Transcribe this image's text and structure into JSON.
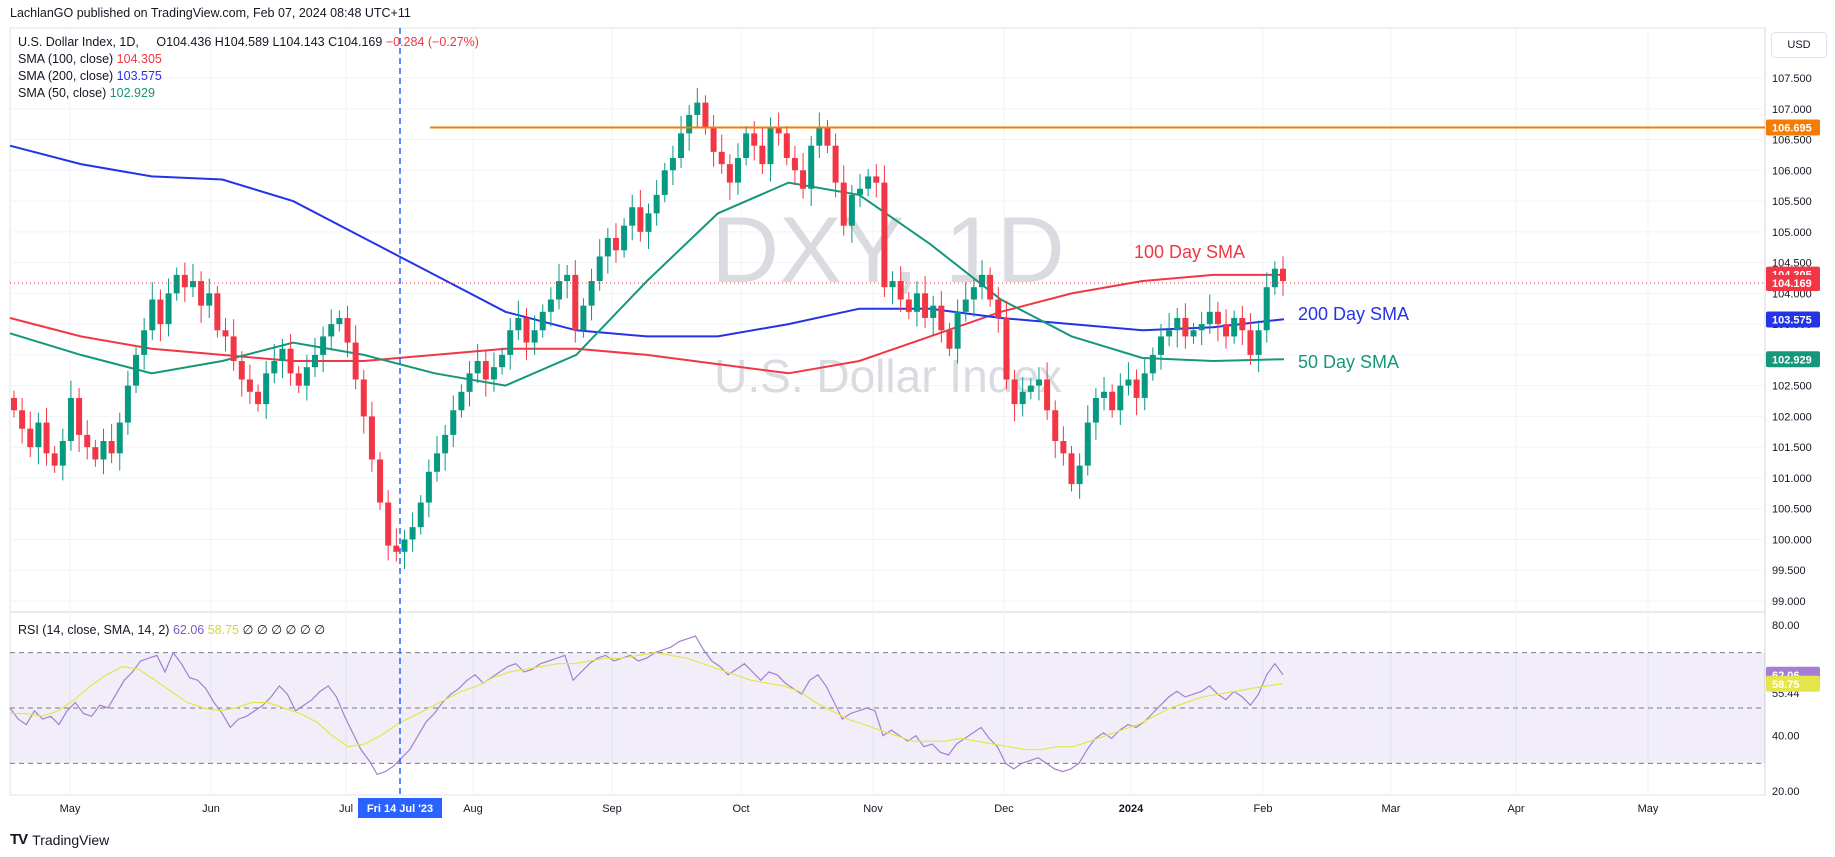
{
  "header": {
    "published": "LachlanGO published on TradingView.com, Feb 07, 2024 08:48 UTC+11"
  },
  "legend": {
    "symbol": "U.S. Dollar Index, 1D,",
    "open": "O104.436",
    "high": "H104.589",
    "low": "L104.143",
    "close": "C104.169",
    "change": "−0.284 (−0.27%)",
    "sma100_label": "SMA (100, close)",
    "sma100_val": "104.305",
    "sma200_label": "SMA (200, close)",
    "sma200_val": "103.575",
    "sma50_label": "SMA (50, close)",
    "sma50_val": "102.929"
  },
  "currency_button": "USD",
  "watermark": {
    "ticker": "DXY, 1D",
    "name": "U.S. Dollar Index"
  },
  "annotations": {
    "sma100": "100 Day SMA",
    "sma200": "200 Day SMA",
    "sma50": "50 Day SMA"
  },
  "rsi_legend": {
    "label": "RSI (14, close, SMA, 14, 2)",
    "rsi": "62.06",
    "sma": "58.75",
    "extra": "∅ ∅ ∅ ∅ ∅ ∅"
  },
  "crosshair_label": "Fri 14 Jul '23",
  "brand": "TradingView",
  "colors": {
    "up": "#089981",
    "down": "#f23645",
    "sma100": "#f23645",
    "sma200": "#2433e6",
    "sma50": "#15977a",
    "hline": "#f57c00",
    "rsi": "#a57fd1",
    "rsi_sma": "#e4e64a",
    "crosshair": "#2962ff"
  },
  "chart_data": [
    {
      "type": "candlestick",
      "title": "U.S. Dollar Index (DXY), 1D",
      "y_axis_ticks": [
        "107.500",
        "107.000",
        "106.500",
        "106.000",
        "105.500",
        "105.000",
        "104.500",
        "104.000",
        "103.500",
        "103.000",
        "102.500",
        "102.000",
        "101.500",
        "101.000",
        "100.500",
        "100.000",
        "99.500",
        "99.000"
      ],
      "ylim": [
        98.9,
        107.8
      ],
      "x_axis_ticks": [
        "May",
        "Jun",
        "Jul",
        "Aug",
        "Sep",
        "Oct",
        "Nov",
        "Dec",
        "2024",
        "Feb",
        "Mar",
        "Apr",
        "May"
      ],
      "price_tags": [
        {
          "label": "106.695",
          "value": 106.695,
          "color": "#f57c00"
        },
        {
          "label": "104.305",
          "value": 104.305,
          "color": "#f23645"
        },
        {
          "label": "104.169",
          "value": 104.169,
          "color": "#f23645"
        },
        {
          "label": "103.575",
          "value": 103.575,
          "color": "#2433e6"
        },
        {
          "label": "102.929",
          "value": 102.929,
          "color": "#15977a"
        }
      ],
      "horizontal_line": 106.695,
      "close_series": [
        102.1,
        101.8,
        101.5,
        101.9,
        101.4,
        101.2,
        101.6,
        102.3,
        101.7,
        101.5,
        101.3,
        101.6,
        101.4,
        101.9,
        102.5,
        103.0,
        103.4,
        103.9,
        103.5,
        104.0,
        104.3,
        104.1,
        104.2,
        103.8,
        104.0,
        103.4,
        103.3,
        102.9,
        102.6,
        102.4,
        102.2,
        102.7,
        102.9,
        103.1,
        102.7,
        102.5,
        102.8,
        103.0,
        103.3,
        103.5,
        103.6,
        103.2,
        102.6,
        102.0,
        101.3,
        100.6,
        99.9,
        99.8,
        100.0,
        100.2,
        100.6,
        101.1,
        101.4,
        101.7,
        102.1,
        102.4,
        102.7,
        102.9,
        102.6,
        102.8,
        103.0,
        103.4,
        103.6,
        103.2,
        103.4,
        103.7,
        103.9,
        104.2,
        104.3,
        103.4,
        103.8,
        104.2,
        104.6,
        104.9,
        104.7,
        105.1,
        105.4,
        105.0,
        105.3,
        105.6,
        106.0,
        106.2,
        106.6,
        106.9,
        107.1,
        106.7,
        106.3,
        106.1,
        105.8,
        106.2,
        106.6,
        106.4,
        106.1,
        106.7,
        106.6,
        106.2,
        106.0,
        105.7,
        106.4,
        106.7,
        106.4,
        105.8,
        105.1,
        105.6,
        105.7,
        105.9,
        105.8,
        104.1,
        104.2,
        103.9,
        103.7,
        104.0,
        103.6,
        103.8,
        103.4,
        103.1,
        103.7,
        103.9,
        104.1,
        104.3,
        103.9,
        103.6,
        102.6,
        102.2,
        102.4,
        102.5,
        102.6,
        102.1,
        101.6,
        101.4,
        100.9,
        101.2,
        101.9,
        102.3,
        102.4,
        102.1,
        102.5,
        102.6,
        102.3,
        102.7,
        103.0,
        103.3,
        103.4,
        103.6,
        103.3,
        103.4,
        103.5,
        103.7,
        103.5,
        103.3,
        103.6,
        103.4,
        103.0,
        103.4,
        104.1,
        104.4,
        104.2
      ],
      "series": [
        {
          "name": "SMA (100, close)",
          "values": [
            103.6,
            103.3,
            103.1,
            103.0,
            102.9,
            102.9,
            103.0,
            103.1,
            103.1,
            103.0,
            102.85,
            102.7,
            102.9,
            103.3,
            103.7,
            104.0,
            104.2,
            104.3,
            104.3
          ]
        },
        {
          "name": "SMA (200, close)",
          "values": [
            106.4,
            106.1,
            105.9,
            105.85,
            105.5,
            104.9,
            104.3,
            103.7,
            103.4,
            103.3,
            103.3,
            103.5,
            103.75,
            103.75,
            103.6,
            103.5,
            103.4,
            103.45,
            103.58
          ]
        },
        {
          "name": "SMA (50, close)",
          "values": [
            103.35,
            103.0,
            102.7,
            102.9,
            103.2,
            103.0,
            102.7,
            102.5,
            103.0,
            104.2,
            105.3,
            105.8,
            105.6,
            104.8,
            103.9,
            103.3,
            102.95,
            102.9,
            102.93
          ]
        }
      ]
    },
    {
      "type": "line",
      "title": "RSI (14, close, SMA, 14, 2)",
      "y_axis_ticks": [
        "80.00",
        "60.36",
        "55.44",
        "40.00",
        "20.00"
      ],
      "ylim": [
        20,
        80
      ],
      "levels": [
        70,
        50,
        30
      ],
      "series": [
        {
          "name": "RSI",
          "values": [
            50,
            46,
            44,
            49,
            46,
            47,
            44,
            49,
            52,
            48,
            47,
            51,
            50,
            55,
            60,
            63,
            67,
            68,
            69,
            63,
            70,
            66,
            61,
            60,
            57,
            52,
            48,
            43,
            46,
            47,
            49,
            51,
            54,
            58,
            55,
            49,
            51,
            53,
            56,
            58,
            54,
            47,
            41,
            35,
            31,
            26,
            27,
            29,
            32,
            35,
            40,
            45,
            48,
            52,
            55,
            57,
            60,
            62,
            59,
            61,
            63,
            65,
            66,
            63,
            64,
            66,
            67,
            68,
            69,
            60,
            63,
            66,
            68,
            69,
            67,
            68,
            69,
            67,
            68,
            70,
            71,
            72,
            74,
            75,
            76,
            71,
            67,
            65,
            62,
            64,
            66,
            63,
            60,
            63,
            62,
            59,
            57,
            55,
            60,
            62,
            58,
            52,
            46,
            48,
            49,
            50,
            49,
            40,
            42,
            40,
            38,
            40,
            36,
            37,
            34,
            33,
            37,
            39,
            41,
            43,
            39,
            36,
            30,
            28,
            30,
            31,
            32,
            30,
            28,
            27,
            28,
            30,
            35,
            39,
            41,
            39,
            42,
            44,
            43,
            45,
            48,
            51,
            54,
            56,
            54,
            55,
            56,
            58,
            55,
            53,
            56,
            54,
            51,
            55,
            62,
            66,
            62
          ]
        },
        {
          "name": "RSI SMA",
          "values": [
            48,
            48,
            47,
            49,
            53,
            58,
            62,
            65,
            64,
            60,
            56,
            52,
            50,
            49,
            50,
            52,
            52,
            50,
            48,
            45,
            40,
            36,
            37,
            40,
            44,
            47,
            50,
            53,
            56,
            58,
            61,
            63,
            64,
            65,
            66,
            66,
            67,
            68,
            68,
            69,
            70,
            69,
            68,
            66,
            64,
            62,
            60,
            59,
            58,
            56,
            52,
            49,
            46,
            44,
            42,
            40,
            38,
            38,
            38,
            39,
            38,
            37,
            36,
            35,
            35,
            36,
            36,
            38,
            40,
            42,
            44,
            47,
            50,
            52,
            54,
            55,
            56,
            57,
            58,
            58.75
          ]
        }
      ]
    }
  ]
}
